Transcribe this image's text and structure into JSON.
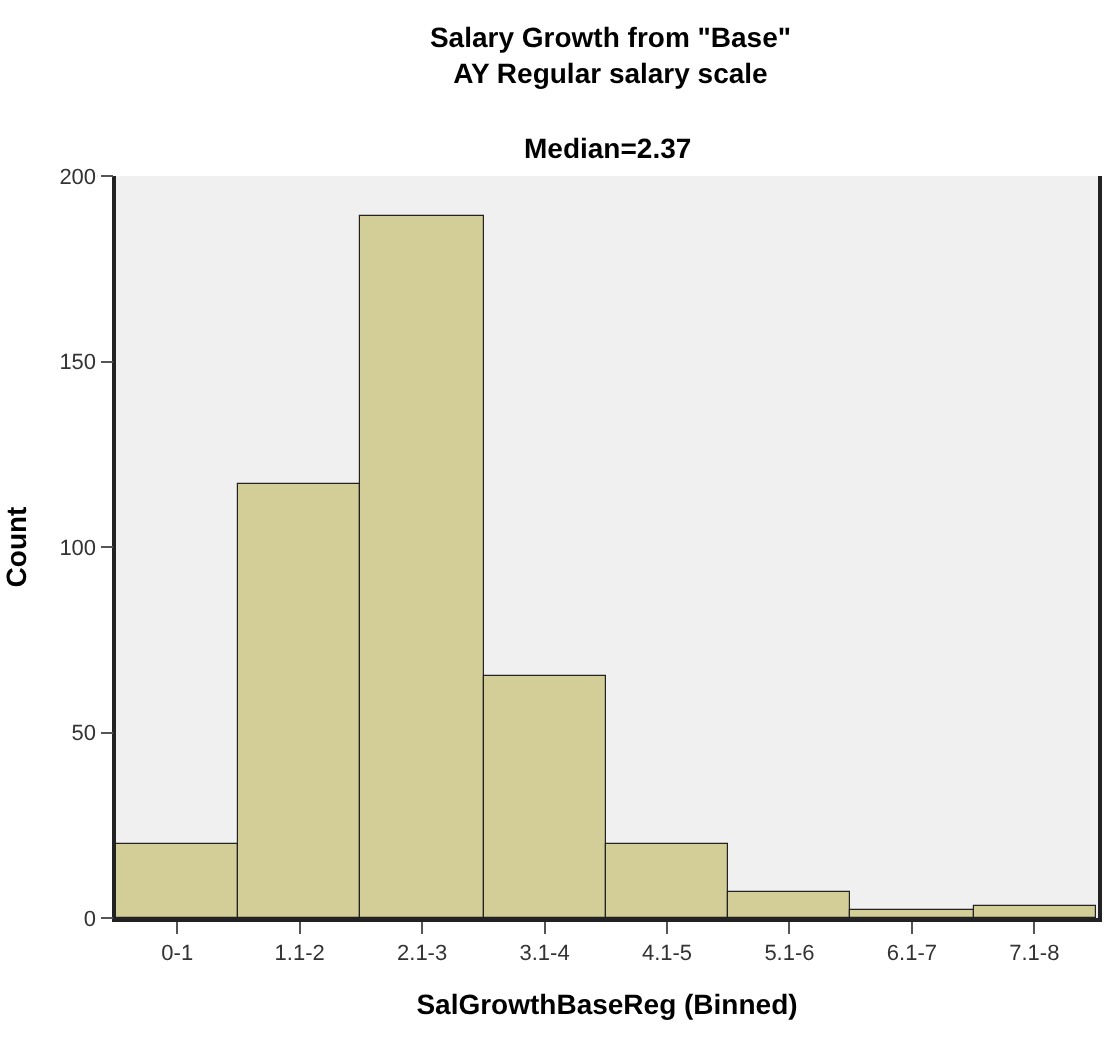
{
  "chart_data": {
    "type": "bar",
    "title": "Salary Growth from \"Base\"\nAY Regular salary scale",
    "subtitle": "Median=2.37",
    "xlabel": "SalGrowthBaseReg (Binned)",
    "ylabel": "Count",
    "categories": [
      "0-1",
      "1.1-2",
      "2.1-3",
      "3.1-4",
      "4.1-5",
      "5.1-6",
      "6.1-7",
      "7.1-8"
    ],
    "values": [
      20,
      117,
      189,
      65,
      20,
      7,
      2,
      3
    ],
    "color": "#d3ce97",
    "ylim": [
      0,
      200
    ],
    "yticks": [
      0,
      50,
      100,
      150,
      200
    ],
    "grid": false
  }
}
